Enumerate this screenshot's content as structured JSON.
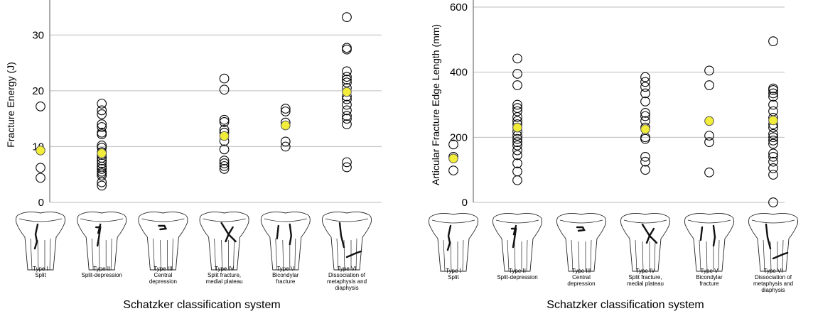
{
  "chart_data": [
    {
      "type": "scatter",
      "title": "",
      "xlabel": "Schatzker classification system",
      "ylabel": "Fracture Energy (J)",
      "ylim": [
        0,
        35
      ],
      "yticks": [
        0,
        10,
        20,
        30
      ],
      "grid": true,
      "categories": [
        [
          "Type I",
          "Split"
        ],
        [
          "Type II",
          "Split-depression"
        ],
        [
          "Type III",
          "Central",
          "depression"
        ],
        [
          "Type IV",
          "Split fracture,",
          "medial plateau"
        ],
        [
          "Type V",
          "Bicondylar",
          "fracture"
        ],
        [
          "Type VI",
          "Dissociation of",
          "metaphysis and",
          "diaphysis"
        ]
      ],
      "series": [
        {
          "values": [
            [
              17.2,
              6.2,
              4.4
            ],
            [
              17.7,
              16.5,
              15.8,
              14.0,
              13.5,
              12.5,
              12.2,
              10.2,
              9.8,
              9.0,
              8.5,
              8.0,
              7.5,
              7.0,
              6.4,
              6.0,
              5.5,
              5.2,
              4.8,
              3.6,
              3.0
            ],
            [],
            [
              22.2,
              20.2,
              14.8,
              14.4,
              13.0,
              12.5,
              11.0,
              9.5,
              7.5,
              7.0,
              6.5,
              6.0
            ],
            [
              16.8,
              16.3,
              14.3,
              10.9,
              10.0
            ],
            [
              33.2,
              27.7,
              27.4,
              23.5,
              22.5,
              22.0,
              21.5,
              20.5,
              19.0,
              18.5,
              17.5,
              16.5,
              15.5,
              15.0,
              14.0,
              7.2,
              6.3
            ]
          ]
        },
        {
          "role": "mean",
          "color": "#f2ec3a",
          "values": [
            9.3,
            8.8,
            null,
            11.9,
            13.8,
            19.8
          ]
        }
      ]
    },
    {
      "type": "scatter",
      "title": "",
      "xlabel": "Schatzker classification system",
      "ylabel": "Articular Fracture Edge Length (mm)",
      "ylim": [
        0,
        600
      ],
      "yticks": [
        0,
        200,
        400,
        600
      ],
      "grid": true,
      "categories": [
        [
          "Type I",
          "Split"
        ],
        [
          "Type II",
          "Split-depression"
        ],
        [
          "Type III",
          "Central",
          "depression"
        ],
        [
          "Type IV",
          "Split fracture,",
          "medial plateau"
        ],
        [
          "Type V",
          "Bicondylar",
          "fracture"
        ],
        [
          "Type VI",
          "Dissociation of",
          "metaphysis and",
          "diaphysis"
        ]
      ],
      "series": [
        {
          "values": [
            [
              178,
              140,
              98
            ],
            [
              442,
              395,
              360,
              300,
              290,
              280,
              262,
              250,
              240,
              230,
              218,
              205,
              195,
              185,
              175,
              160,
              145,
              120,
              95,
              68
            ],
            [],
            [
              385,
              370,
              355,
              335,
              310,
              275,
              265,
              250,
              230,
              200,
              195,
              140,
              125,
              100
            ],
            [
              405,
              360,
              205,
              185,
              92
            ],
            [
              495,
              350,
              345,
              335,
              325,
              300,
              280,
              260,
              240,
              230,
              210,
              200,
              190,
              180,
              150,
              140,
              125,
              105,
              85,
              0
            ]
          ]
        },
        {
          "role": "mean",
          "color": "#f2ec3a",
          "values": [
            135,
            230,
            null,
            225,
            250,
            252
          ]
        }
      ]
    }
  ]
}
